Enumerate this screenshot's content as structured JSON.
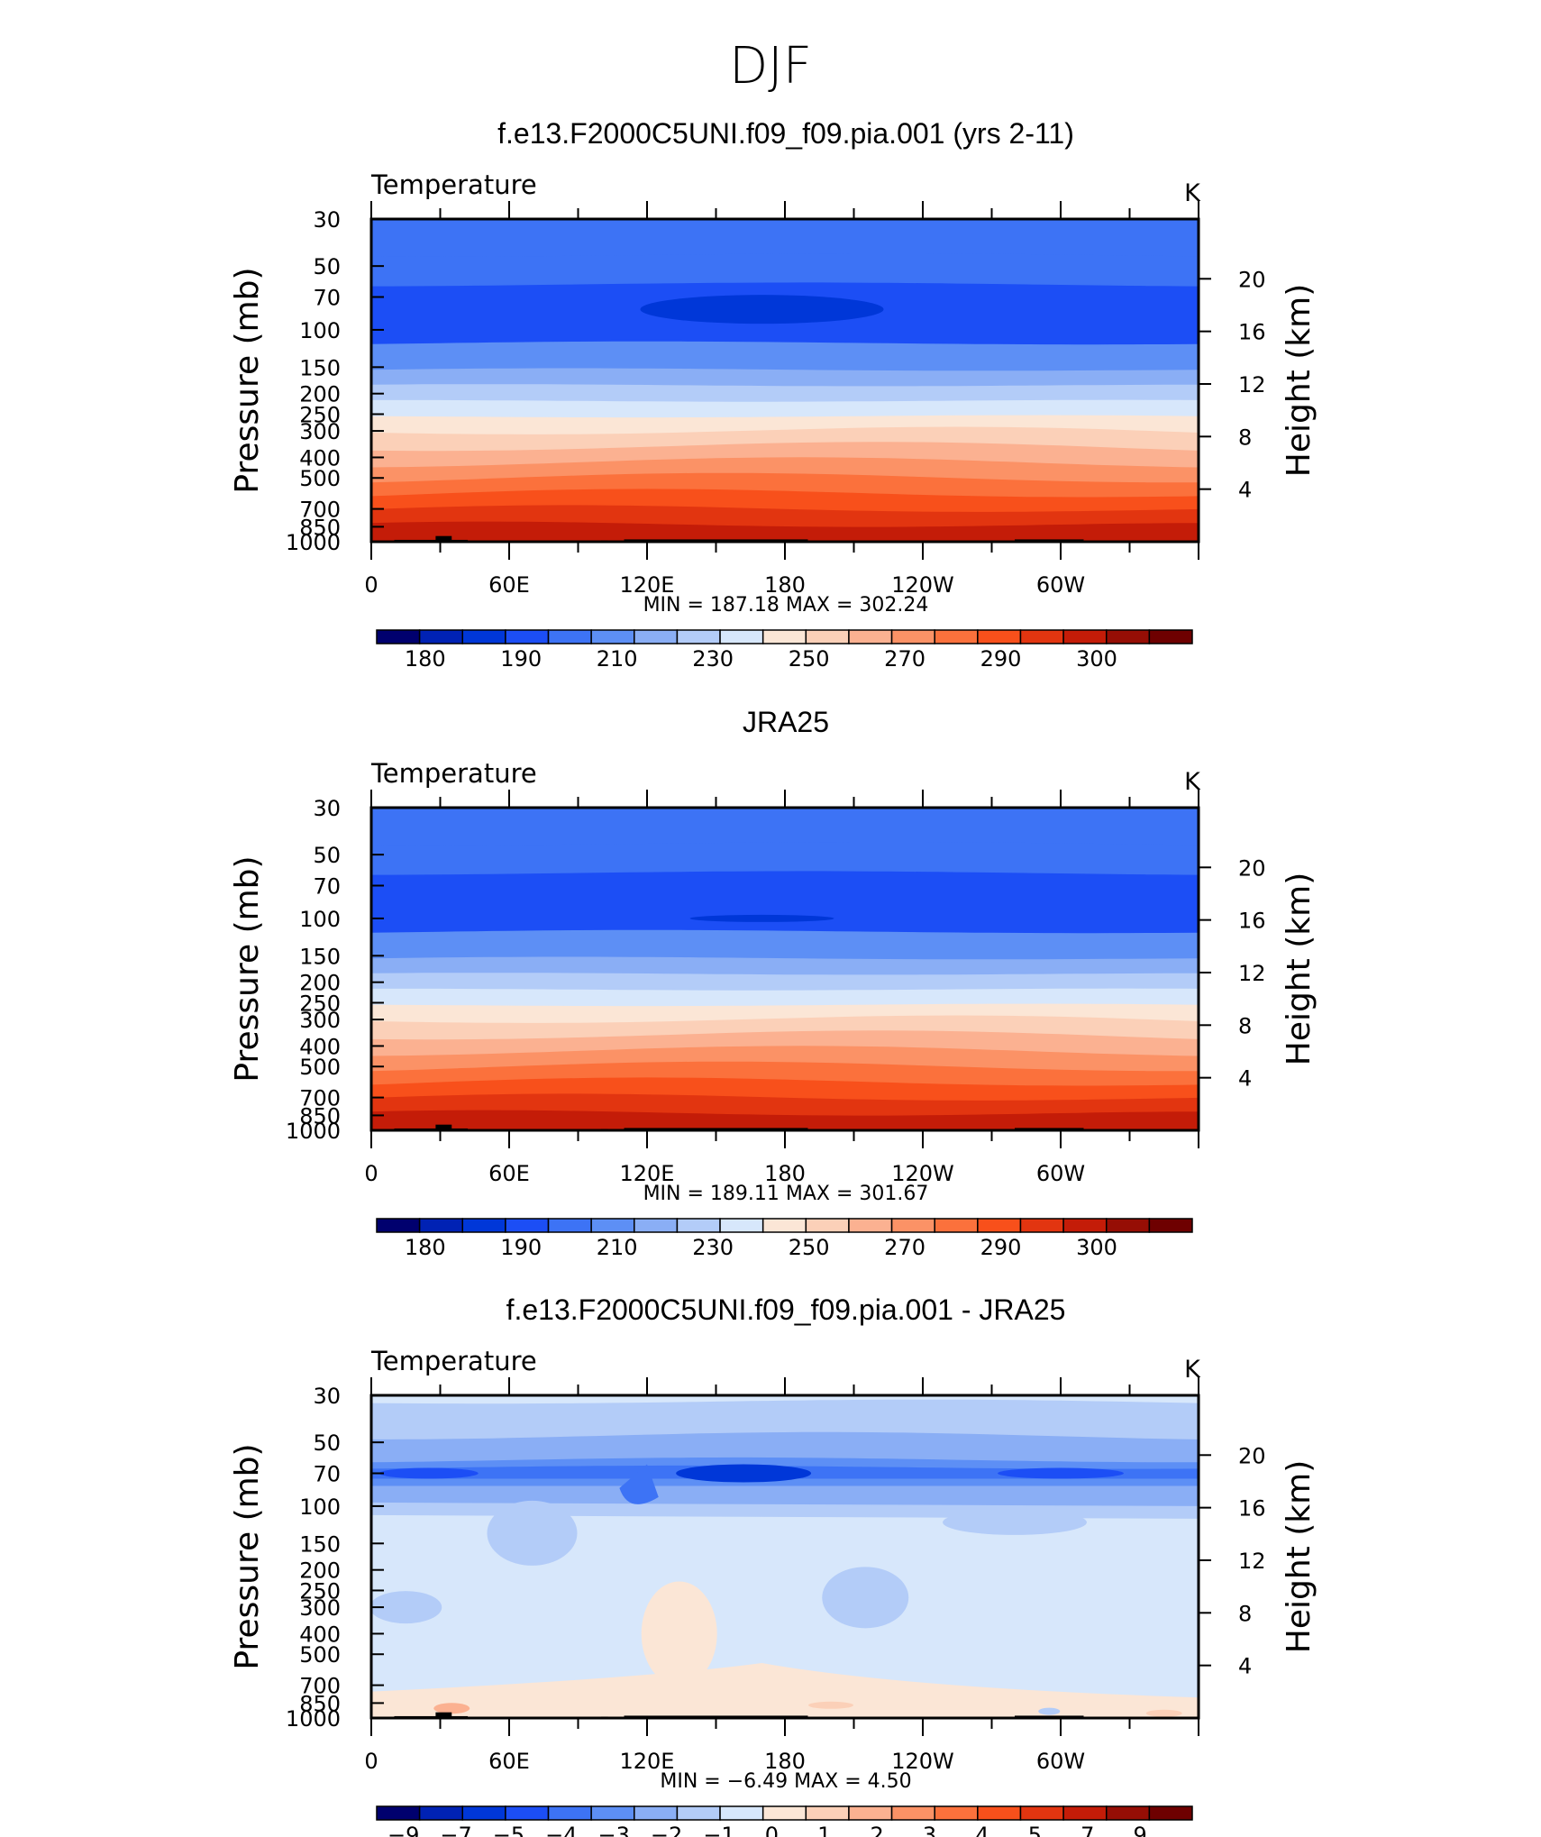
{
  "figure_title": "DJF",
  "palettes": {
    "abs": [
      "#00006e",
      "#0022b4",
      "#0037d8",
      "#1c4ef5",
      "#3d73f5",
      "#5d8ff5",
      "#8aaef5",
      "#b3ccf8",
      "#d7e7fb",
      "#fbe6d6",
      "#fbd0b8",
      "#fbb191",
      "#fb9266",
      "#fb713c",
      "#f8501b",
      "#e23510",
      "#c41c08",
      "#960e05",
      "#6e0000"
    ],
    "diff": [
      "#00006e",
      "#0022b4",
      "#0037d8",
      "#1c4ef5",
      "#3d73f5",
      "#5d8ff5",
      "#8aaef5",
      "#b3ccf8",
      "#d7e7fb",
      "#fbe6d6",
      "#fbd0b8",
      "#fbb191",
      "#fb9266",
      "#fb713c",
      "#f8501b",
      "#e23510",
      "#c41c08",
      "#960e05",
      "#6e0000"
    ]
  },
  "chart_data": [
    {
      "type": "heatmap",
      "title": "f.e13.F2000C5UNI.f09_f09.pia.001 (yrs 2-11)",
      "variable": "Temperature",
      "units": "K",
      "xlabels": [
        "0",
        "60E",
        "120E",
        "180",
        "120W",
        "60W"
      ],
      "xlim": [
        0,
        360
      ],
      "ylabel": "Pressure (mb)",
      "ylabel_right": "Height (km)",
      "pressure_ticks": [
        "30",
        "50",
        "70",
        "100",
        "150",
        "200",
        "250",
        "300",
        "400",
        "500",
        "700",
        "850",
        "1000"
      ],
      "height_ticks": [
        "20",
        "16",
        "12",
        "8",
        "4"
      ],
      "min_max_text": "MIN  =  187.18    MAX  =  302.24",
      "min": 187.18,
      "max": 302.24,
      "colorbar_labels": [
        "180",
        "190",
        "210",
        "230",
        "250",
        "270",
        "290",
        "300"
      ],
      "layers_from_top": [
        4,
        4,
        3,
        3,
        5,
        6,
        7,
        8,
        9,
        10,
        11,
        12,
        13,
        14,
        15,
        16
      ],
      "cold_core": {
        "level_mb": 80,
        "value_index": 2
      },
      "palette": "abs"
    },
    {
      "type": "heatmap",
      "title": "JRA25",
      "variable": "Temperature",
      "units": "K",
      "xlabels": [
        "0",
        "60E",
        "120E",
        "180",
        "120W",
        "60W"
      ],
      "xlim": [
        0,
        360
      ],
      "ylabel": "Pressure (mb)",
      "ylabel_right": "Height (km)",
      "pressure_ticks": [
        "30",
        "50",
        "70",
        "100",
        "150",
        "200",
        "250",
        "300",
        "400",
        "500",
        "700",
        "850",
        "1000"
      ],
      "height_ticks": [
        "20",
        "16",
        "12",
        "8",
        "4"
      ],
      "min_max_text": "MIN  =  189.11    MAX  =  301.67",
      "min": 189.11,
      "max": 301.67,
      "colorbar_labels": [
        "180",
        "190",
        "210",
        "230",
        "250",
        "270",
        "290",
        "300"
      ],
      "layers_from_top": [
        4,
        4,
        3,
        3,
        5,
        6,
        7,
        8,
        9,
        10,
        11,
        12,
        13,
        14,
        15,
        16
      ],
      "cold_core": {
        "level_mb": 100,
        "value_index": 2
      },
      "palette": "abs"
    },
    {
      "type": "heatmap",
      "title": "f.e13.F2000C5UNI.f09_f09.pia.001 - JRA25",
      "variable": "Temperature",
      "units": "K",
      "xlabels": [
        "0",
        "60E",
        "120E",
        "180",
        "120W",
        "60W"
      ],
      "xlim": [
        0,
        360
      ],
      "ylabel": "Pressure (mb)",
      "ylabel_right": "Height (km)",
      "pressure_ticks": [
        "30",
        "50",
        "70",
        "100",
        "150",
        "200",
        "250",
        "300",
        "400",
        "500",
        "700",
        "850",
        "1000"
      ],
      "height_ticks": [
        "20",
        "16",
        "12",
        "8",
        "4"
      ],
      "min_max_text": "MIN  =    −6.49    MAX  =    4.50",
      "min": -6.49,
      "max": 4.5,
      "colorbar_labels": [
        "−9",
        "−7",
        "−5",
        "−4",
        "−3",
        "−2",
        "−1",
        "0",
        "1",
        "2",
        "3",
        "4",
        "5",
        "7",
        "9"
      ],
      "palette": "diff"
    }
  ]
}
